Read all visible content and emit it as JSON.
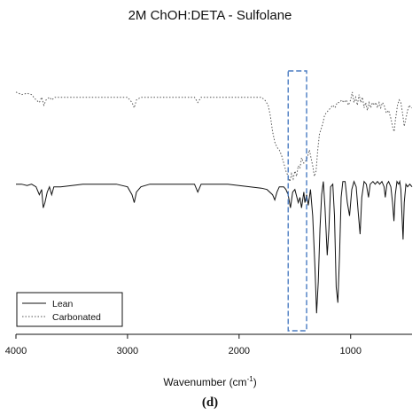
{
  "chart_data": {
    "type": "line",
    "title": "2M ChOH:DETA - Sulfolane",
    "xlabel": "Wavenumber (cm",
    "xlabel_sup": "-1",
    "xlabel_end": ")",
    "ylabel": "",
    "panel_label": "(d)",
    "x_reversed": true,
    "xlim": [
      4000,
      450
    ],
    "x_ticks": [
      4000,
      3000,
      2000,
      1000
    ],
    "x_tick_labels": [
      "4000",
      "3000",
      "2000",
      "1000"
    ],
    "legend_position": "bottom-left",
    "highlight_region": {
      "x": [
        1560,
        1395
      ],
      "color": "#4a7cc2",
      "style": "dashed"
    },
    "series": [
      {
        "name": "Lean",
        "style": "solid",
        "color": "#111111",
        "points": [
          [
            4000,
            0.43
          ],
          [
            3950,
            0.43
          ],
          [
            3900,
            0.435
          ],
          [
            3860,
            0.43
          ],
          [
            3820,
            0.44
          ],
          [
            3790,
            0.47
          ],
          [
            3770,
            0.45
          ],
          [
            3755,
            0.52
          ],
          [
            3740,
            0.5
          ],
          [
            3720,
            0.46
          ],
          [
            3700,
            0.44
          ],
          [
            3680,
            0.47
          ],
          [
            3660,
            0.44
          ],
          [
            3600,
            0.44
          ],
          [
            3500,
            0.435
          ],
          [
            3400,
            0.43
          ],
          [
            3300,
            0.43
          ],
          [
            3200,
            0.43
          ],
          [
            3100,
            0.43
          ],
          [
            3000,
            0.44
          ],
          [
            2960,
            0.47
          ],
          [
            2940,
            0.5
          ],
          [
            2920,
            0.46
          ],
          [
            2880,
            0.44
          ],
          [
            2800,
            0.43
          ],
          [
            2700,
            0.43
          ],
          [
            2600,
            0.43
          ],
          [
            2500,
            0.43
          ],
          [
            2400,
            0.43
          ],
          [
            2370,
            0.46
          ],
          [
            2340,
            0.43
          ],
          [
            2200,
            0.43
          ],
          [
            2100,
            0.43
          ],
          [
            2000,
            0.435
          ],
          [
            1900,
            0.44
          ],
          [
            1800,
            0.445
          ],
          [
            1750,
            0.45
          ],
          [
            1700,
            0.47
          ],
          [
            1680,
            0.49
          ],
          [
            1660,
            0.46
          ],
          [
            1640,
            0.44
          ],
          [
            1600,
            0.44
          ],
          [
            1580,
            0.45
          ],
          [
            1560,
            0.47
          ],
          [
            1540,
            0.52
          ],
          [
            1520,
            0.46
          ],
          [
            1500,
            0.45
          ],
          [
            1470,
            0.5
          ],
          [
            1455,
            0.48
          ],
          [
            1440,
            0.52
          ],
          [
            1420,
            0.46
          ],
          [
            1410,
            0.5
          ],
          [
            1395,
            0.47
          ],
          [
            1380,
            0.51
          ],
          [
            1360,
            0.45
          ],
          [
            1340,
            0.55
          ],
          [
            1320,
            0.75
          ],
          [
            1305,
            0.92
          ],
          [
            1290,
            0.8
          ],
          [
            1275,
            0.6
          ],
          [
            1260,
            0.47
          ],
          [
            1245,
            0.42
          ],
          [
            1230,
            0.52
          ],
          [
            1210,
            0.7
          ],
          [
            1195,
            0.6
          ],
          [
            1180,
            0.44
          ],
          [
            1160,
            0.43
          ],
          [
            1145,
            0.55
          ],
          [
            1130,
            0.82
          ],
          [
            1115,
            0.88
          ],
          [
            1100,
            0.7
          ],
          [
            1085,
            0.48
          ],
          [
            1070,
            0.42
          ],
          [
            1050,
            0.42
          ],
          [
            1030,
            0.5
          ],
          [
            1010,
            0.55
          ],
          [
            990,
            0.45
          ],
          [
            970,
            0.42
          ],
          [
            950,
            0.44
          ],
          [
            930,
            0.55
          ],
          [
            915,
            0.62
          ],
          [
            900,
            0.48
          ],
          [
            880,
            0.42
          ],
          [
            860,
            0.43
          ],
          [
            840,
            0.48
          ],
          [
            825,
            0.43
          ],
          [
            800,
            0.42
          ],
          [
            780,
            0.43
          ],
          [
            760,
            0.42
          ],
          [
            740,
            0.43
          ],
          [
            720,
            0.42
          ],
          [
            700,
            0.44
          ],
          [
            690,
            0.48
          ],
          [
            675,
            0.43
          ],
          [
            660,
            0.42
          ],
          [
            640,
            0.44
          ],
          [
            625,
            0.5
          ],
          [
            612,
            0.57
          ],
          [
            600,
            0.47
          ],
          [
            585,
            0.42
          ],
          [
            570,
            0.43
          ],
          [
            560,
            0.42
          ],
          [
            550,
            0.45
          ],
          [
            540,
            0.55
          ],
          [
            530,
            0.64
          ],
          [
            520,
            0.5
          ],
          [
            505,
            0.43
          ],
          [
            490,
            0.44
          ],
          [
            470,
            0.43
          ],
          [
            450,
            0.44
          ]
        ]
      },
      {
        "name": "Carbonated",
        "style": "dotted",
        "color": "#555555",
        "points": [
          [
            4000,
            0.08
          ],
          [
            3950,
            0.09
          ],
          [
            3900,
            0.085
          ],
          [
            3860,
            0.09
          ],
          [
            3820,
            0.11
          ],
          [
            3790,
            0.12
          ],
          [
            3770,
            0.1
          ],
          [
            3750,
            0.13
          ],
          [
            3730,
            0.11
          ],
          [
            3700,
            0.1
          ],
          [
            3680,
            0.11
          ],
          [
            3650,
            0.1
          ],
          [
            3600,
            0.1
          ],
          [
            3500,
            0.1
          ],
          [
            3400,
            0.1
          ],
          [
            3300,
            0.1
          ],
          [
            3200,
            0.1
          ],
          [
            3100,
            0.1
          ],
          [
            3000,
            0.1
          ],
          [
            2960,
            0.12
          ],
          [
            2940,
            0.14
          ],
          [
            2920,
            0.11
          ],
          [
            2880,
            0.1
          ],
          [
            2800,
            0.1
          ],
          [
            2700,
            0.1
          ],
          [
            2600,
            0.1
          ],
          [
            2500,
            0.1
          ],
          [
            2400,
            0.1
          ],
          [
            2370,
            0.12
          ],
          [
            2340,
            0.1
          ],
          [
            2200,
            0.1
          ],
          [
            2100,
            0.1
          ],
          [
            2000,
            0.1
          ],
          [
            1900,
            0.1
          ],
          [
            1850,
            0.1
          ],
          [
            1800,
            0.1
          ],
          [
            1770,
            0.11
          ],
          [
            1740,
            0.13
          ],
          [
            1720,
            0.17
          ],
          [
            1700,
            0.23
          ],
          [
            1680,
            0.27
          ],
          [
            1660,
            0.29
          ],
          [
            1640,
            0.3
          ],
          [
            1620,
            0.32
          ],
          [
            1600,
            0.35
          ],
          [
            1580,
            0.38
          ],
          [
            1560,
            0.4
          ],
          [
            1545,
            0.42
          ],
          [
            1530,
            0.39
          ],
          [
            1515,
            0.41
          ],
          [
            1500,
            0.38
          ],
          [
            1485,
            0.4
          ],
          [
            1470,
            0.36
          ],
          [
            1455,
            0.37
          ],
          [
            1440,
            0.33
          ],
          [
            1420,
            0.35
          ],
          [
            1400,
            0.34
          ],
          [
            1390,
            0.33
          ],
          [
            1370,
            0.3
          ],
          [
            1355,
            0.33
          ],
          [
            1340,
            0.36
          ],
          [
            1325,
            0.4
          ],
          [
            1310,
            0.38
          ],
          [
            1295,
            0.3
          ],
          [
            1280,
            0.24
          ],
          [
            1265,
            0.22
          ],
          [
            1250,
            0.2
          ],
          [
            1235,
            0.17
          ],
          [
            1220,
            0.16
          ],
          [
            1200,
            0.15
          ],
          [
            1180,
            0.14
          ],
          [
            1160,
            0.13
          ],
          [
            1140,
            0.14
          ],
          [
            1120,
            0.12
          ],
          [
            1100,
            0.12
          ],
          [
            1080,
            0.11
          ],
          [
            1060,
            0.12
          ],
          [
            1040,
            0.11
          ],
          [
            1020,
            0.13
          ],
          [
            1000,
            0.11
          ],
          [
            985,
            0.08
          ],
          [
            970,
            0.12
          ],
          [
            955,
            0.1
          ],
          [
            940,
            0.13
          ],
          [
            925,
            0.09
          ],
          [
            910,
            0.12
          ],
          [
            895,
            0.1
          ],
          [
            880,
            0.14
          ],
          [
            865,
            0.12
          ],
          [
            850,
            0.15
          ],
          [
            835,
            0.12
          ],
          [
            820,
            0.14
          ],
          [
            805,
            0.12
          ],
          [
            790,
            0.13
          ],
          [
            775,
            0.12
          ],
          [
            760,
            0.14
          ],
          [
            745,
            0.12
          ],
          [
            730,
            0.14
          ],
          [
            715,
            0.12
          ],
          [
            700,
            0.13
          ],
          [
            680,
            0.16
          ],
          [
            660,
            0.15
          ],
          [
            640,
            0.18
          ],
          [
            620,
            0.22
          ],
          [
            610,
            0.23
          ],
          [
            600,
            0.19
          ],
          [
            590,
            0.16
          ],
          [
            580,
            0.13
          ],
          [
            565,
            0.11
          ],
          [
            550,
            0.12
          ],
          [
            535,
            0.16
          ],
          [
            520,
            0.21
          ],
          [
            505,
            0.18
          ],
          [
            490,
            0.15
          ],
          [
            475,
            0.13
          ],
          [
            460,
            0.14
          ],
          [
            450,
            0.14
          ]
        ]
      }
    ]
  }
}
